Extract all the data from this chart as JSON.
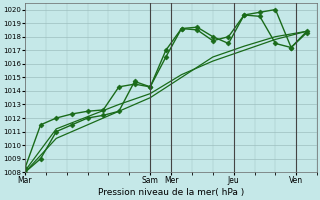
{
  "xlabel": "Pression niveau de la mer( hPa )",
  "bg_color": "#c5e8e8",
  "grid_color": "#9dbfbf",
  "line_color": "#1a6b1a",
  "ylim": [
    1008,
    1020.5
  ],
  "ytick_min": 1008,
  "ytick_max": 1020,
  "xtick_labels": [
    "Mar",
    "Sam",
    "Mer",
    "Jeu",
    "Ven"
  ],
  "xtick_positions": [
    0,
    48,
    56,
    80,
    104
  ],
  "xlim": [
    0,
    112
  ],
  "vlines": [
    48,
    56,
    80,
    104
  ],
  "series": [
    {
      "x": [
        0,
        6,
        12,
        18,
        24,
        30,
        36,
        42,
        48,
        54,
        60,
        66,
        72,
        78,
        84,
        90,
        96,
        102,
        108
      ],
      "y": [
        1008.0,
        1009.0,
        1011.0,
        1011.5,
        1012.0,
        1012.2,
        1012.5,
        1014.7,
        1014.3,
        1016.5,
        1018.6,
        1018.7,
        1018.0,
        1017.5,
        1019.6,
        1019.8,
        1020.0,
        1017.2,
        1018.3
      ],
      "marker": "D",
      "ms": 2.5,
      "lw": 1.0,
      "ls": "-"
    },
    {
      "x": [
        0,
        6,
        12,
        18,
        24,
        30,
        36,
        42,
        48,
        54,
        60,
        66,
        72,
        78,
        84,
        90,
        96,
        102,
        108
      ],
      "y": [
        1008.3,
        1011.5,
        1012.0,
        1012.3,
        1012.5,
        1012.6,
        1014.3,
        1014.5,
        1014.3,
        1017.0,
        1018.6,
        1018.5,
        1017.7,
        1018.0,
        1019.6,
        1019.5,
        1017.5,
        1017.2,
        1018.4
      ],
      "marker": "D",
      "ms": 2.5,
      "lw": 1.0,
      "ls": "-"
    },
    {
      "x": [
        0,
        12,
        24,
        36,
        48,
        60,
        72,
        84,
        96,
        108
      ],
      "y": [
        1008.1,
        1011.2,
        1012.1,
        1013.0,
        1013.8,
        1015.2,
        1016.2,
        1017.0,
        1017.8,
        1018.4
      ],
      "marker": "None",
      "ms": 0,
      "lw": 0.9,
      "ls": "-"
    },
    {
      "x": [
        0,
        12,
        24,
        36,
        48,
        60,
        72,
        84,
        96,
        108
      ],
      "y": [
        1008.0,
        1010.5,
        1011.5,
        1012.5,
        1013.5,
        1015.0,
        1016.5,
        1017.3,
        1018.0,
        1018.4
      ],
      "marker": "None",
      "ms": 0,
      "lw": 0.9,
      "ls": "-"
    }
  ]
}
